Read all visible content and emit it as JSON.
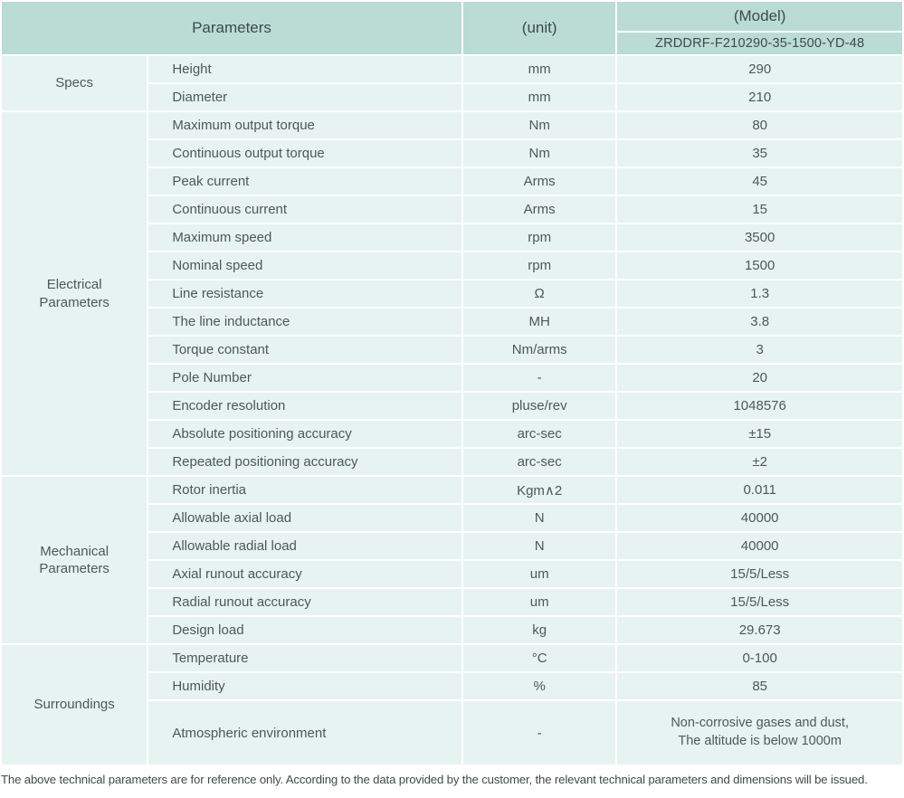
{
  "header": {
    "parameters_label": "Parameters",
    "unit_label": "(unit)",
    "model_label": "(Model)",
    "model_value": "ZRDDRF-F210290-35-1500-YD-48"
  },
  "sections": [
    {
      "label": "Specs",
      "rows": [
        {
          "param": "Height",
          "unit": "mm",
          "value": "290"
        },
        {
          "param": "Diameter",
          "unit": "mm",
          "value": "210"
        }
      ]
    },
    {
      "label": "Electrical\nParameters",
      "rows": [
        {
          "param": "Maximum output torque",
          "unit": "Nm",
          "value": "80"
        },
        {
          "param": "Continuous output torque",
          "unit": "Nm",
          "value": "35"
        },
        {
          "param": "Peak current",
          "unit": "Arms",
          "value": "45"
        },
        {
          "param": "Continuous current",
          "unit": "Arms",
          "value": "15"
        },
        {
          "param": "Maximum speed",
          "unit": "rpm",
          "value": "3500"
        },
        {
          "param": "Nominal speed",
          "unit": "rpm",
          "value": "1500"
        },
        {
          "param": "Line resistance",
          "unit": "Ω",
          "value": "1.3"
        },
        {
          "param": "The line inductance",
          "unit": "MH",
          "value": "3.8"
        },
        {
          "param": "Torque constant",
          "unit": "Nm/arms",
          "value": "3"
        },
        {
          "param": "Pole Number",
          "unit": "-",
          "value": "20"
        },
        {
          "param": "Encoder resolution",
          "unit": "pluse/rev",
          "value": "1048576"
        },
        {
          "param": "Absolute positioning accuracy",
          "unit": "arc-sec",
          "value": "±15"
        },
        {
          "param": "Repeated positioning accuracy",
          "unit": "arc-sec",
          "value": "±2"
        }
      ]
    },
    {
      "label": "Mechanical\nParameters",
      "rows": [
        {
          "param": "Rotor inertia",
          "unit": "Kgm∧2",
          "value": "0.011"
        },
        {
          "param": "Allowable axial load",
          "unit": "N",
          "value": "40000"
        },
        {
          "param": "Allowable radial load",
          "unit": "N",
          "value": "40000"
        },
        {
          "param": "Axial runout accuracy",
          "unit": "um",
          "value": "15/5/Less"
        },
        {
          "param": "Radial runout accuracy",
          "unit": "um",
          "value": "15/5/Less"
        },
        {
          "param": "Design load",
          "unit": "kg",
          "value": "29.673"
        }
      ]
    },
    {
      "label": "Surroundings",
      "rows": [
        {
          "param": "Temperature",
          "unit": "°C",
          "value": "0-100"
        },
        {
          "param": "Humidity",
          "unit": "%",
          "value": "85"
        },
        {
          "param": "Atmospheric environment",
          "unit": "-",
          "value": "Non-corrosive gases and dust,\nThe altitude is below 1000m",
          "tall": true
        }
      ]
    }
  ],
  "footer_note": "The above technical parameters are for reference only. According to the data provided by the customer, the relevant technical parameters and dimensions will be issued.",
  "colors": {
    "header_bg": "#badcd5",
    "cell_bg": "#e7f3f0",
    "page_bg": "#ffffff"
  }
}
